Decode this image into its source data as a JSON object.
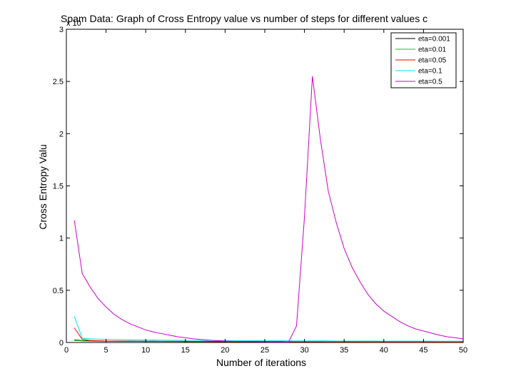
{
  "chart_data": {
    "type": "line",
    "title": "Spam Data: Graph of Cross Entropy value vs number of steps for different values c",
    "xlabel": "Number of iterations",
    "ylabel": "Cross Entropy Valu",
    "y_exponent_label": "x 10",
    "xlim": [
      0,
      50
    ],
    "ylim": [
      0,
      3
    ],
    "xticks": [
      0,
      5,
      10,
      15,
      20,
      25,
      30,
      35,
      40,
      45,
      50
    ],
    "yticks": [
      0,
      0.5,
      1,
      1.5,
      2,
      2.5,
      3
    ],
    "ytick_labels": [
      "0",
      "0.5",
      "1",
      "1.5",
      "2",
      "2.5",
      "3"
    ],
    "legend_position": "top-right",
    "grid": false,
    "x": [
      1,
      2,
      3,
      4,
      5,
      6,
      7,
      8,
      9,
      10,
      11,
      12,
      13,
      14,
      15,
      16,
      17,
      18,
      19,
      20,
      21,
      22,
      23,
      24,
      25,
      26,
      27,
      28,
      29,
      30,
      31,
      32,
      33,
      34,
      35,
      36,
      37,
      38,
      39,
      40,
      41,
      42,
      43,
      44,
      45,
      46,
      47,
      48,
      49,
      50
    ],
    "series": [
      {
        "name": "eta=0.001",
        "color": "#000000",
        "values": [
          0.025,
          0.018,
          0.016,
          0.015,
          0.014,
          0.014,
          0.013,
          0.013,
          0.012,
          0.012,
          0.012,
          0.011,
          0.011,
          0.011,
          0.011,
          0.01,
          0.01,
          0.01,
          0.01,
          0.01,
          0.009,
          0.009,
          0.009,
          0.009,
          0.009,
          0.009,
          0.009,
          0.008,
          0.008,
          0.008,
          0.008,
          0.008,
          0.008,
          0.008,
          0.008,
          0.008,
          0.007,
          0.007,
          0.007,
          0.007,
          0.007,
          0.007,
          0.007,
          0.007,
          0.007,
          0.007,
          0.007,
          0.007,
          0.006,
          0.006
        ]
      },
      {
        "name": "eta=0.01",
        "color": "#00cc00",
        "values": [
          0.02,
          0.015,
          0.013,
          0.012,
          0.011,
          0.011,
          0.01,
          0.01,
          0.01,
          0.009,
          0.009,
          0.009,
          0.009,
          0.009,
          0.008,
          0.008,
          0.008,
          0.008,
          0.008,
          0.008,
          0.008,
          0.007,
          0.007,
          0.007,
          0.007,
          0.007,
          0.007,
          0.007,
          0.007,
          0.007,
          0.007,
          0.007,
          0.006,
          0.006,
          0.006,
          0.006,
          0.006,
          0.006,
          0.006,
          0.006,
          0.006,
          0.006,
          0.006,
          0.006,
          0.006,
          0.006,
          0.006,
          0.006,
          0.006,
          0.006
        ]
      },
      {
        "name": "eta=0.05",
        "color": "#ff0000",
        "values": [
          0.14,
          0.03,
          0.02,
          0.016,
          0.014,
          0.013,
          0.012,
          0.011,
          0.011,
          0.01,
          0.01,
          0.01,
          0.009,
          0.009,
          0.009,
          0.009,
          0.009,
          0.008,
          0.008,
          0.008,
          0.008,
          0.008,
          0.008,
          0.008,
          0.007,
          0.007,
          0.007,
          0.007,
          0.007,
          0.007,
          0.007,
          0.007,
          0.007,
          0.007,
          0.007,
          0.007,
          0.006,
          0.006,
          0.006,
          0.006,
          0.006,
          0.006,
          0.006,
          0.006,
          0.006,
          0.006,
          0.006,
          0.006,
          0.006,
          0.006
        ]
      },
      {
        "name": "eta=0.1",
        "color": "#00e5e5",
        "values": [
          0.25,
          0.04,
          0.035,
          0.032,
          0.03,
          0.028,
          0.027,
          0.026,
          0.025,
          0.024,
          0.023,
          0.022,
          0.021,
          0.021,
          0.02,
          0.02,
          0.019,
          0.019,
          0.018,
          0.018,
          0.018,
          0.017,
          0.017,
          0.017,
          0.016,
          0.016,
          0.016,
          0.016,
          0.015,
          0.015,
          0.015,
          0.015,
          0.015,
          0.014,
          0.014,
          0.014,
          0.014,
          0.014,
          0.014,
          0.013,
          0.013,
          0.013,
          0.013,
          0.013,
          0.013,
          0.013,
          0.012,
          0.012,
          0.012,
          0.012
        ]
      },
      {
        "name": "eta=0.5",
        "color": "#cc00cc",
        "values": [
          1.17,
          0.66,
          0.53,
          0.42,
          0.34,
          0.27,
          0.22,
          0.18,
          0.15,
          0.12,
          0.1,
          0.085,
          0.07,
          0.055,
          0.045,
          0.035,
          0.028,
          0.022,
          0.018,
          0.014,
          0.011,
          0.009,
          0.008,
          0.007,
          0.006,
          0.005,
          0.005,
          0.005,
          0.16,
          1.2,
          2.55,
          1.95,
          1.45,
          1.15,
          0.9,
          0.72,
          0.58,
          0.46,
          0.37,
          0.3,
          0.25,
          0.2,
          0.16,
          0.13,
          0.11,
          0.09,
          0.07,
          0.055,
          0.045,
          0.035
        ]
      }
    ]
  }
}
